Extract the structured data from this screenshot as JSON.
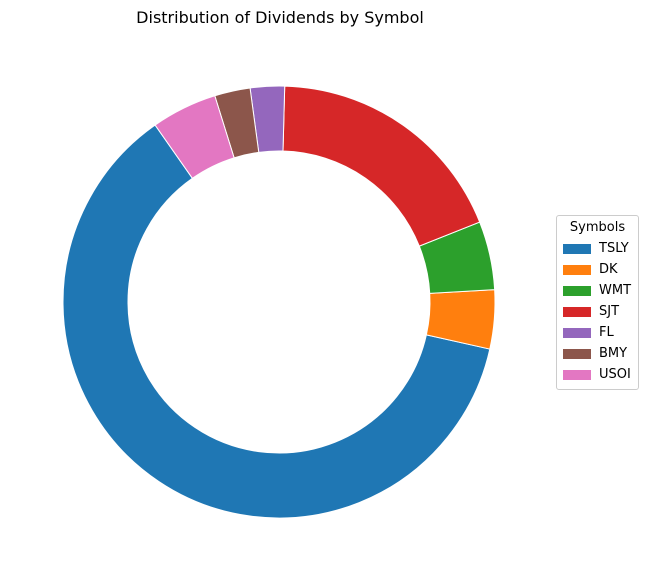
{
  "chart_data": {
    "type": "pie",
    "donut": true,
    "title": "Distribution of Dividends by Symbol",
    "legend_title": "Symbols",
    "legend_position": "right",
    "start_angle_deg": 125,
    "direction": "counterclockwise",
    "slices": [
      {
        "label": "TSLY",
        "value": 60.3,
        "color": "#1f77b4"
      },
      {
        "label": "DK",
        "value": 4.3,
        "color": "#ff7f0e"
      },
      {
        "label": "WMT",
        "value": 5.0,
        "color": "#2ca02c"
      },
      {
        "label": "SJT",
        "value": 18.1,
        "color": "#d62728"
      },
      {
        "label": "FL",
        "value": 2.5,
        "color": "#9467bd"
      },
      {
        "label": "BMY",
        "value": 2.6,
        "color": "#8c564b"
      },
      {
        "label": "USOI",
        "value": 4.8,
        "color": "#e377c2"
      }
    ]
  }
}
